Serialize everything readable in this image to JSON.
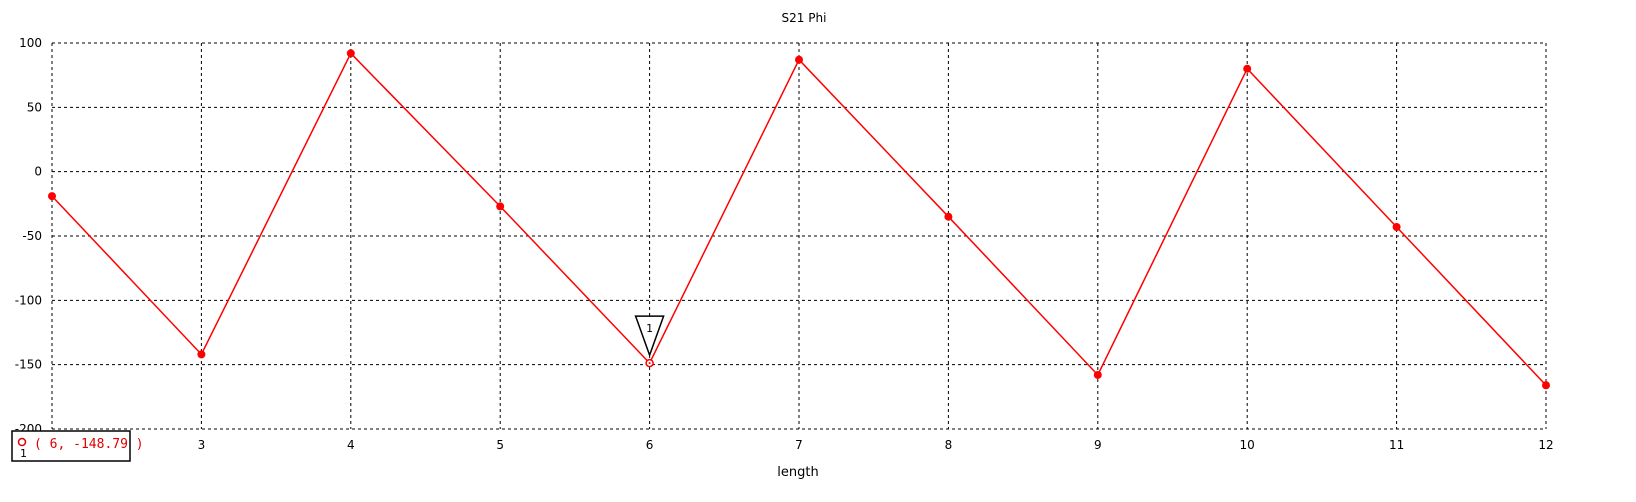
{
  "chart_data": {
    "type": "line",
    "title": "S21 Phi",
    "xlabel": "length",
    "ylabel": "",
    "xlim": [
      2,
      12
    ],
    "ylim": [
      -200,
      100
    ],
    "xticks": [
      3,
      4,
      5,
      6,
      7,
      8,
      9,
      10,
      11,
      12
    ],
    "yticks": [
      100,
      50,
      0,
      -50,
      -100,
      -150,
      -200
    ],
    "grid": true,
    "series": [
      {
        "color": "#ff0000",
        "x": [
          2,
          3,
          4,
          5,
          6,
          7,
          8,
          9,
          10,
          11,
          12
        ],
        "y": [
          -19,
          -142,
          92,
          -27,
          -148.79,
          87,
          -35,
          -158,
          80,
          -43,
          -166
        ]
      }
    ],
    "marker": {
      "id": "1",
      "x": 6,
      "y": -148.79,
      "readout": "( 6, -148.79 )",
      "readout_index": "1"
    }
  }
}
